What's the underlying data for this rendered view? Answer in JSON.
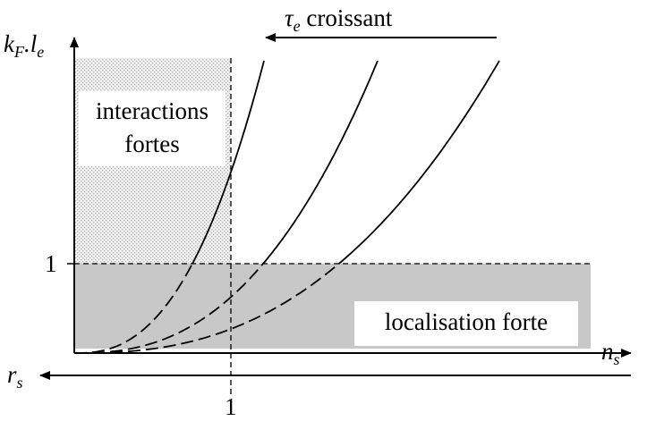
{
  "y_axis_label": [
    "k",
    "F",
    ".l",
    "e"
  ],
  "tau_label": [
    "τ",
    "e",
    " croissant"
  ],
  "x_axis_label": [
    "n",
    "s"
  ],
  "r_axis_label": [
    "r",
    "s"
  ],
  "y_tick": "1",
  "x_tick": "1",
  "strong_interactions": [
    "interactions",
    "fortes"
  ],
  "strong_localisation": "localisation forte"
}
